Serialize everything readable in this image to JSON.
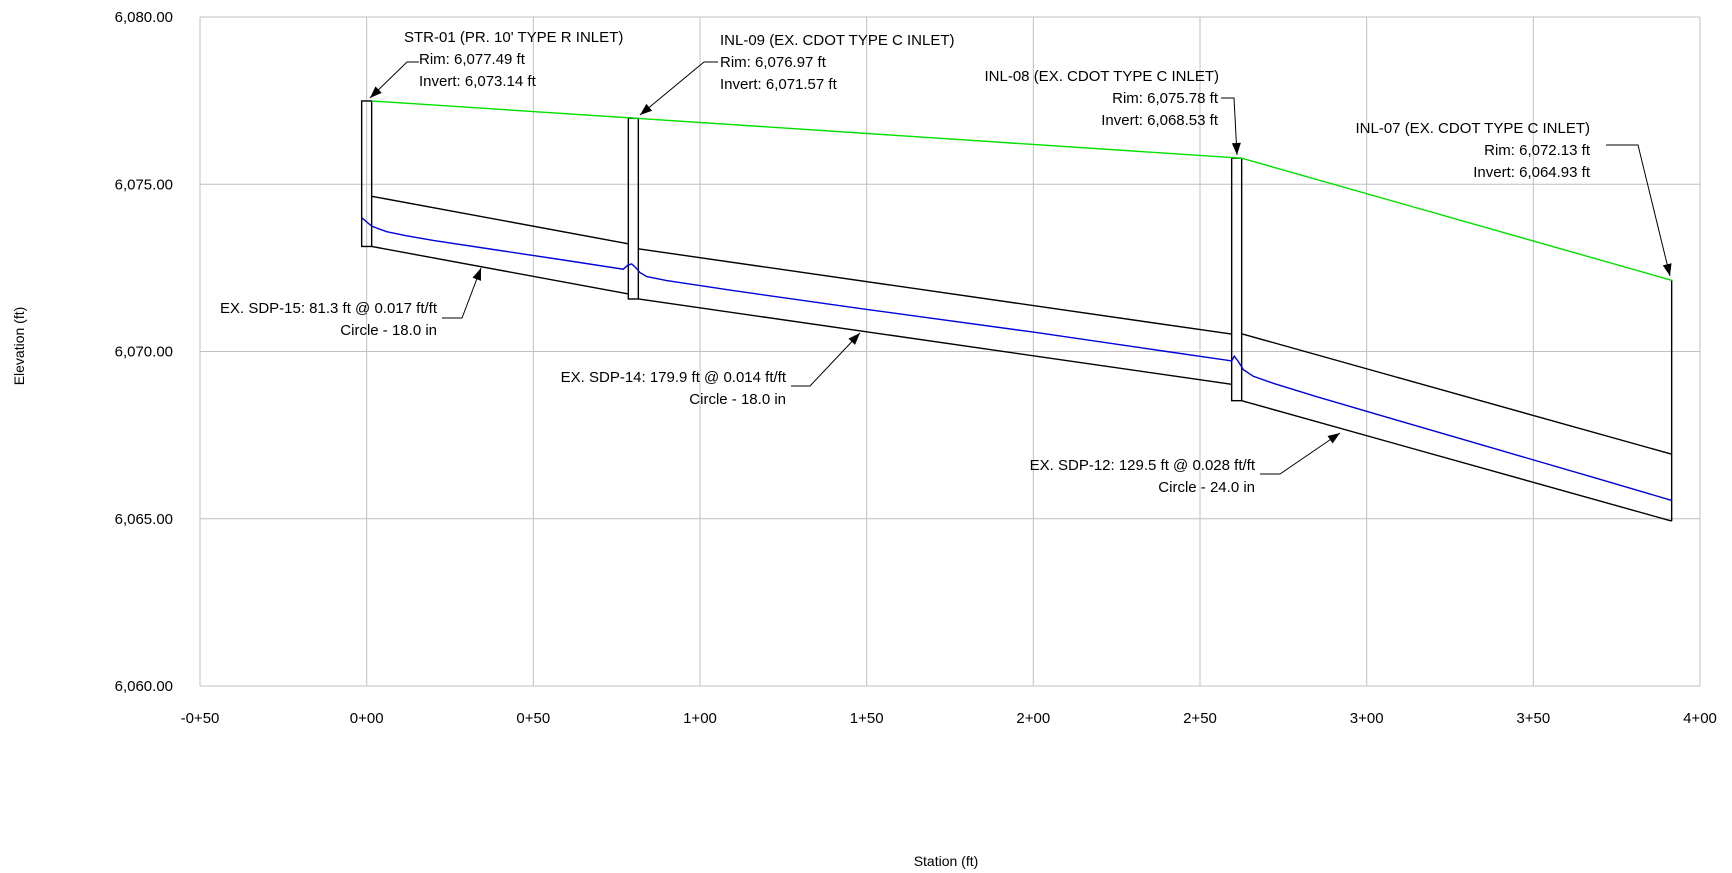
{
  "chart_data": {
    "type": "line",
    "xlabel": "Station (ft)",
    "ylabel": "Elevation (ft)",
    "xlim": [
      -50,
      400
    ],
    "ylim": [
      6060,
      6080
    ],
    "xticks": [
      {
        "v": -50,
        "label": "-0+50"
      },
      {
        "v": 0,
        "label": "0+00"
      },
      {
        "v": 50,
        "label": "0+50"
      },
      {
        "v": 100,
        "label": "1+00"
      },
      {
        "v": 150,
        "label": "1+50"
      },
      {
        "v": 200,
        "label": "2+00"
      },
      {
        "v": 250,
        "label": "2+50"
      },
      {
        "v": 300,
        "label": "3+00"
      },
      {
        "v": 350,
        "label": "3+50"
      },
      {
        "v": 400,
        "label": "4+00"
      }
    ],
    "yticks": [
      {
        "v": 6060,
        "label": "6,060.00"
      },
      {
        "v": 6065,
        "label": "6,065.00"
      },
      {
        "v": 6070,
        "label": "6,070.00"
      },
      {
        "v": 6075,
        "label": "6,075.00"
      },
      {
        "v": 6080,
        "label": "6,080.00"
      }
    ],
    "grid": true,
    "colors": {
      "ground": "#00e000",
      "hgl": "#0000dd",
      "pipe": "#000000",
      "grid": "#c0c0c0"
    },
    "structures": [
      {
        "id": "STR-01",
        "x0": -1.5,
        "x1": 1.5,
        "rim": 6077.49,
        "invert": 6073.14,
        "lines": [
          "STR-01 (PR. 10' TYPE R INLET)",
          "Rim: 6,077.49 ft",
          "Invert: 6,073.14 ft"
        ]
      },
      {
        "id": "INL-09",
        "x0": 78.5,
        "x1": 81.5,
        "rim": 6076.97,
        "invert": 6071.57,
        "lines": [
          "INL-09 (EX. CDOT TYPE C INLET)",
          "Rim: 6,076.97 ft",
          "Invert: 6,071.57 ft"
        ]
      },
      {
        "id": "INL-08",
        "x0": 259.5,
        "x1": 262.5,
        "rim": 6075.78,
        "invert": 6068.53,
        "lines": [
          "INL-08 (EX. CDOT TYPE C INLET)",
          "Rim: 6,075.78 ft",
          "Invert: 6,068.53 ft"
        ]
      },
      {
        "id": "INL-07",
        "x0": 391.5,
        "x1": 391.5,
        "rim": 6072.13,
        "invert": 6064.93,
        "lines": [
          "INL-07 (EX. CDOT TYPE C INLET)",
          "Rim: 6,072.13 ft",
          "Invert: 6,064.93 ft"
        ]
      }
    ],
    "pipes": [
      {
        "id": "EX. SDP-15",
        "x0": 1.5,
        "x1": 78.5,
        "inv0": 6073.14,
        "inv1": 6071.72,
        "crown0": 6074.64,
        "crown1": 6073.22,
        "lines": [
          "EX. SDP-15: 81.3 ft @ 0.017 ft/ft",
          "Circle - 18.0 in"
        ]
      },
      {
        "id": "EX. SDP-14",
        "x0": 81.5,
        "x1": 259.5,
        "inv0": 6071.57,
        "inv1": 6069.02,
        "crown0": 6073.07,
        "crown1": 6070.52,
        "lines": [
          "EX. SDP-14: 179.9 ft @ 0.014 ft/ft",
          "Circle - 18.0 in"
        ]
      },
      {
        "id": "EX. SDP-12",
        "x0": 262.5,
        "x1": 391.5,
        "inv0": 6068.53,
        "inv1": 6064.93,
        "crown0": 6070.53,
        "crown1": 6066.93,
        "lines": [
          "EX. SDP-12: 129.5 ft @ 0.028 ft/ft",
          "Circle - 24.0 in"
        ]
      }
    ],
    "series": [
      {
        "id": "ground",
        "points": [
          [
            1.5,
            6077.49
          ],
          [
            81.5,
            6076.97
          ],
          [
            262.5,
            6075.78
          ],
          [
            391.5,
            6072.13
          ]
        ]
      },
      {
        "id": "hgl",
        "points": [
          [
            -1.5,
            6074.0
          ],
          [
            1.5,
            6073.75
          ],
          [
            6,
            6073.58
          ],
          [
            12,
            6073.46
          ],
          [
            20,
            6073.32
          ],
          [
            40,
            6073.02
          ],
          [
            60,
            6072.72
          ],
          [
            77,
            6072.46
          ],
          [
            78.3,
            6072.58
          ],
          [
            79.5,
            6072.62
          ],
          [
            80.6,
            6072.52
          ],
          [
            82,
            6072.36
          ],
          [
            84,
            6072.24
          ],
          [
            90,
            6072.12
          ],
          [
            110,
            6071.82
          ],
          [
            150,
            6071.26
          ],
          [
            200,
            6070.58
          ],
          [
            240,
            6070.0
          ],
          [
            259.5,
            6069.72
          ],
          [
            260.3,
            6069.86
          ],
          [
            261.5,
            6069.7
          ],
          [
            263,
            6069.46
          ],
          [
            266,
            6069.26
          ],
          [
            272,
            6069.05
          ],
          [
            285,
            6068.65
          ],
          [
            310,
            6067.92
          ],
          [
            340,
            6067.05
          ],
          [
            370,
            6066.18
          ],
          [
            391.5,
            6065.55
          ]
        ]
      }
    ],
    "annotations": [
      {
        "id": "str01-label",
        "lines": [
          "STR-01 (PR. 10' TYPE R INLET)",
          "Rim: 6,077.49 ft",
          "Invert: 6,073.14 ft"
        ]
      }
    ]
  }
}
